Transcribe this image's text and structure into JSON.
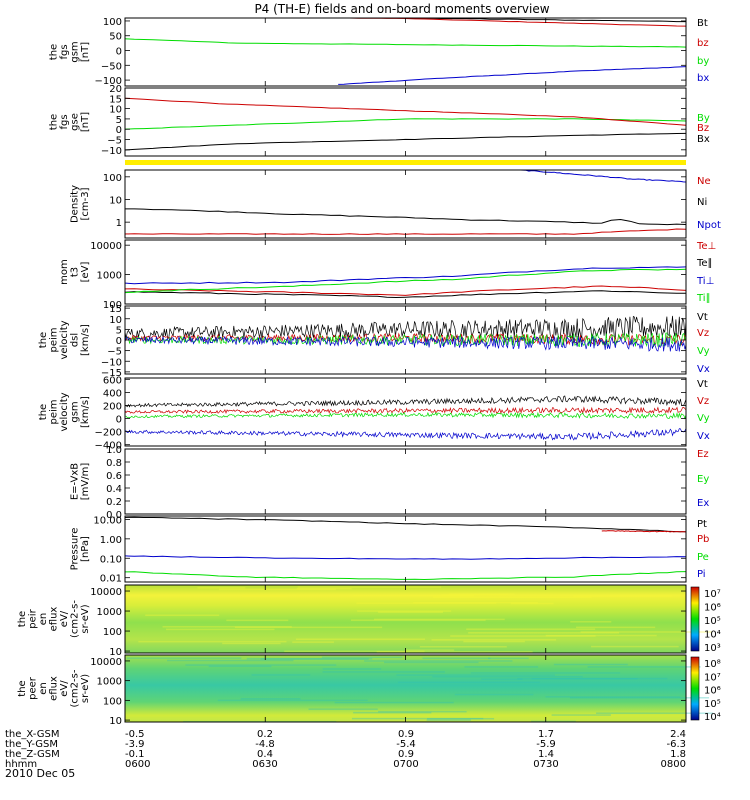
{
  "title": "P4 (TH-E) fields and on-board moments overview",
  "colors": {
    "black": "#000000",
    "red": "#cc0000",
    "green": "#00dd00",
    "blue": "#0000cc",
    "yellow": "#ffee00"
  },
  "chart_data": {
    "type": "line",
    "x_ticks": [
      "0600",
      "0630",
      "0700",
      "0730",
      "0800"
    ],
    "ephemeris": [
      {
        "label": "the_X-GSM",
        "values": [
          "-0.5",
          "0.2",
          "0.9",
          "1.7",
          "2.4"
        ]
      },
      {
        "label": "the_Y-GSM",
        "values": [
          "-3.9",
          "-4.8",
          "-5.4",
          "-5.9",
          "-6.3"
        ]
      },
      {
        "label": "the_Z-GSM",
        "values": [
          "-0.1",
          "0.4",
          "0.9",
          "1.4",
          "1.8"
        ]
      },
      {
        "label": "hhmm",
        "values": [
          "0600",
          "0630",
          "0700",
          "0730",
          "0800"
        ]
      }
    ],
    "date_label": "2010 Dec 05",
    "panels": [
      {
        "id": "fgs-gsm",
        "ylabel": [
          "the",
          "fgs",
          "gsm",
          "[nT]"
        ],
        "scale": "linear",
        "ylim": [
          -120,
          110
        ],
        "ticks": [
          100,
          50,
          0,
          -50,
          -100
        ],
        "tick_labels": [
          "100",
          "50",
          "0",
          "−50",
          "−100"
        ],
        "series": [
          {
            "name": "Bt",
            "color": "black",
            "x": [
              0,
              0.5,
              1
            ],
            "y": [
              118,
              110,
              98
            ]
          },
          {
            "name": "bz",
            "color": "red",
            "x": [
              0,
              0.5,
              1
            ],
            "y": [
              118,
              108,
              82
            ]
          },
          {
            "name": "by",
            "color": "green",
            "x": [
              0,
              0.2,
              0.5,
              1
            ],
            "y": [
              40,
              25,
              20,
              12
            ]
          },
          {
            "name": "bx",
            "color": "blue",
            "x": [
              0.38,
              0.55,
              0.8,
              1
            ],
            "y": [
              -115,
              -95,
              -70,
              -55
            ]
          }
        ]
      },
      {
        "id": "fgs-gse",
        "ylabel": [
          "the",
          "fgs",
          "gse",
          "[nT]"
        ],
        "scale": "linear",
        "ylim": [
          -13,
          20
        ],
        "ticks": [
          20,
          15,
          10,
          5,
          0,
          -5,
          -10
        ],
        "tick_labels": [
          "20",
          "15",
          "10",
          "5",
          "0",
          "−5",
          "−10"
        ],
        "series": [
          {
            "name": "By",
            "color": "green",
            "x": [
              0,
              0.2,
              0.5,
              0.8,
              1
            ],
            "y": [
              0,
              2,
              5,
              5,
              4
            ]
          },
          {
            "name": "Bz",
            "color": "red",
            "x": [
              0,
              0.2,
              0.5,
              0.8,
              1
            ],
            "y": [
              15,
              12,
              9,
              6,
              2
            ]
          },
          {
            "name": "Bx",
            "color": "black",
            "x": [
              0,
              0.2,
              0.5,
              0.8,
              1
            ],
            "y": [
              -10,
              -7,
              -5,
              -3,
              -2
            ]
          }
        ]
      },
      {
        "id": "density",
        "ylabel": [
          "Density",
          "[cm-3]"
        ],
        "scale": "log",
        "ylim": [
          0.2,
          200
        ],
        "ticks": [
          100,
          10,
          1
        ],
        "tick_labels": [
          "100",
          "10",
          "1"
        ],
        "series": [
          {
            "name": "Ne",
            "color": "red",
            "x": [
              0,
              0.4,
              0.8,
              1
            ],
            "y": [
              0.3,
              0.3,
              0.3,
              0.5
            ]
          },
          {
            "name": "Ni",
            "color": "black",
            "x": [
              0,
              0.3,
              0.6,
              0.85,
              0.88,
              0.92,
              1
            ],
            "y": [
              4,
              2.2,
              1.3,
              0.9,
              1.4,
              0.8,
              0.8
            ]
          },
          {
            "name": "Npot",
            "color": "blue",
            "x": [
              0.7,
              0.8,
              0.9,
              1
            ],
            "y": [
              200,
              130,
              80,
              60
            ]
          }
        ]
      },
      {
        "id": "moments-t",
        "ylabel": [
          "mom",
          "t3",
          "[eV]"
        ],
        "scale": "log",
        "ylim": [
          100,
          15000
        ],
        "ticks": [
          10000,
          1000,
          100
        ],
        "tick_labels": [
          "10000",
          "1000",
          "100"
        ],
        "series": [
          {
            "name": "Te⊥",
            "color": "red",
            "x": [
              0,
              0.5,
              0.85,
              1
            ],
            "y": [
              320,
              200,
              400,
              300
            ]
          },
          {
            "name": "Te∥",
            "color": "black",
            "x": [
              0,
              0.5,
              0.85,
              1
            ],
            "y": [
              260,
              170,
              280,
              230
            ]
          },
          {
            "name": "Ti⊥",
            "color": "blue",
            "x": [
              0,
              0.3,
              0.6,
              0.85,
              1
            ],
            "y": [
              500,
              550,
              900,
              1700,
              1800
            ]
          },
          {
            "name": "Ti∥",
            "color": "green",
            "x": [
              0,
              0.3,
              0.6,
              0.85,
              1
            ],
            "y": [
              250,
              400,
              700,
              1400,
              1500
            ]
          }
        ]
      },
      {
        "id": "perm-velocity-dsl",
        "ylabel": [
          "the",
          "peim",
          "velocity",
          "dsl",
          "[km/s]"
        ],
        "scale": "linear",
        "ylim": [
          -16,
          16
        ],
        "ticks": [
          15,
          10,
          5,
          0,
          -5,
          -10,
          -15
        ],
        "tick_labels": [
          "15",
          "10",
          "5",
          "0",
          "−5",
          "−10",
          "−15"
        ],
        "series": [
          {
            "name": "Vt",
            "color": "black",
            "x": [
              0,
              0.5,
              1
            ],
            "y": [
              3,
              5,
              6
            ],
            "noise": 4
          },
          {
            "name": "Vz",
            "color": "red",
            "x": [
              0,
              0.5,
              1
            ],
            "y": [
              1,
              1,
              0
            ],
            "noise": 2
          },
          {
            "name": "Vy",
            "color": "green",
            "x": [
              0,
              0.5,
              1
            ],
            "y": [
              0,
              0,
              0
            ],
            "noise": 2.5
          },
          {
            "name": "Vx",
            "color": "blue",
            "x": [
              0,
              0.5,
              1
            ],
            "y": [
              0,
              -1,
              -2
            ],
            "noise": 2.5
          }
        ]
      },
      {
        "id": "perm-velocity-gsm",
        "ylabel": [
          "the",
          "peim",
          "velocity",
          "gsm",
          "[km/s]"
        ],
        "scale": "linear",
        "ylim": [
          -420,
          620
        ],
        "ticks": [
          600,
          400,
          200,
          0,
          -200,
          -400
        ],
        "tick_labels": [
          "600",
          "400",
          "200",
          "0",
          "−200",
          "−400"
        ],
        "series": [
          {
            "name": "Vt",
            "color": "black",
            "x": [
              0,
              0.5,
              0.8,
              1
            ],
            "y": [
              200,
              250,
              300,
              250
            ],
            "noise": 40
          },
          {
            "name": "Vz",
            "color": "red",
            "x": [
              0,
              0.5,
              1
            ],
            "y": [
              100,
              120,
              130
            ],
            "noise": 35
          },
          {
            "name": "Vy",
            "color": "green",
            "x": [
              0,
              0.5,
              1
            ],
            "y": [
              30,
              60,
              40
            ],
            "noise": 30
          },
          {
            "name": "Vx",
            "color": "blue",
            "x": [
              0,
              0.5,
              0.8,
              1
            ],
            "y": [
              -200,
              -250,
              -280,
              -200
            ],
            "noise": 40
          }
        ]
      },
      {
        "id": "e-field",
        "ylabel": [
          "E=-VxB",
          "[mV/m]"
        ],
        "scale": "linear",
        "ylim": [
          0,
          1
        ],
        "ticks": [
          1.0,
          0.8,
          0.6,
          0.4,
          0.2,
          0.0
        ],
        "tick_labels": [
          "1.0",
          "0.8",
          "0.6",
          "0.4",
          "0.2",
          "0.0"
        ],
        "series": [
          {
            "name": "Ez",
            "color": "red",
            "x": [],
            "y": []
          },
          {
            "name": "Ey",
            "color": "green",
            "x": [],
            "y": []
          },
          {
            "name": "Ex",
            "color": "blue",
            "x": [],
            "y": []
          }
        ]
      },
      {
        "id": "pressure",
        "ylabel": [
          "Pressure",
          "[nPa]"
        ],
        "scale": "log",
        "ylim": [
          0.006,
          15
        ],
        "ticks": [
          10,
          1,
          0.1,
          0.01
        ],
        "tick_labels": [
          "10.00",
          "1.00",
          "0.10",
          "0.01"
        ],
        "series": [
          {
            "name": "Pt",
            "color": "black",
            "x": [
              0,
              0.5,
              1
            ],
            "y": [
              13,
              6,
              2.3
            ]
          },
          {
            "name": "Pb",
            "color": "red",
            "x": [
              0.85,
              1
            ],
            "y": [
              2.6,
              2.3
            ]
          },
          {
            "name": "Pe",
            "color": "green",
            "x": [
              0,
              0.2,
              0.5,
              0.8,
              1
            ],
            "y": [
              0.02,
              0.011,
              0.008,
              0.011,
              0.02
            ]
          },
          {
            "name": "Pi",
            "color": "blue",
            "x": [
              0,
              0.3,
              0.6,
              1
            ],
            "y": [
              0.13,
              0.1,
              0.09,
              0.12
            ]
          }
        ]
      },
      {
        "id": "ion-flux",
        "ylabel": [
          "the",
          "peir",
          "en",
          "eflux",
          "eV/",
          "(cm2-s-",
          "sr-eV)"
        ],
        "scale": "log",
        "ylim": [
          8,
          20000
        ],
        "ticks": [
          10000,
          1000,
          100,
          10
        ],
        "tick_labels": [
          "10000",
          "1000",
          "100",
          "10"
        ],
        "spectrogram": true,
        "colorbar": {
          "labels": [
            "10⁷",
            "10⁶",
            "10⁵",
            "10⁴",
            "10³"
          ]
        }
      },
      {
        "id": "electron-flux",
        "ylabel": [
          "the",
          "peer",
          "en",
          "eflux",
          "eV/",
          "(cm2-s-",
          "sr-eV)"
        ],
        "scale": "log",
        "ylim": [
          8,
          20000
        ],
        "ticks": [
          10000,
          1000,
          100,
          10
        ],
        "tick_labels": [
          "10000",
          "1000",
          "100",
          "10"
        ],
        "spectrogram": true,
        "colorbar": {
          "labels": [
            "10⁸",
            "10⁷",
            "10⁶",
            "10⁵",
            "10⁴"
          ]
        }
      }
    ]
  }
}
